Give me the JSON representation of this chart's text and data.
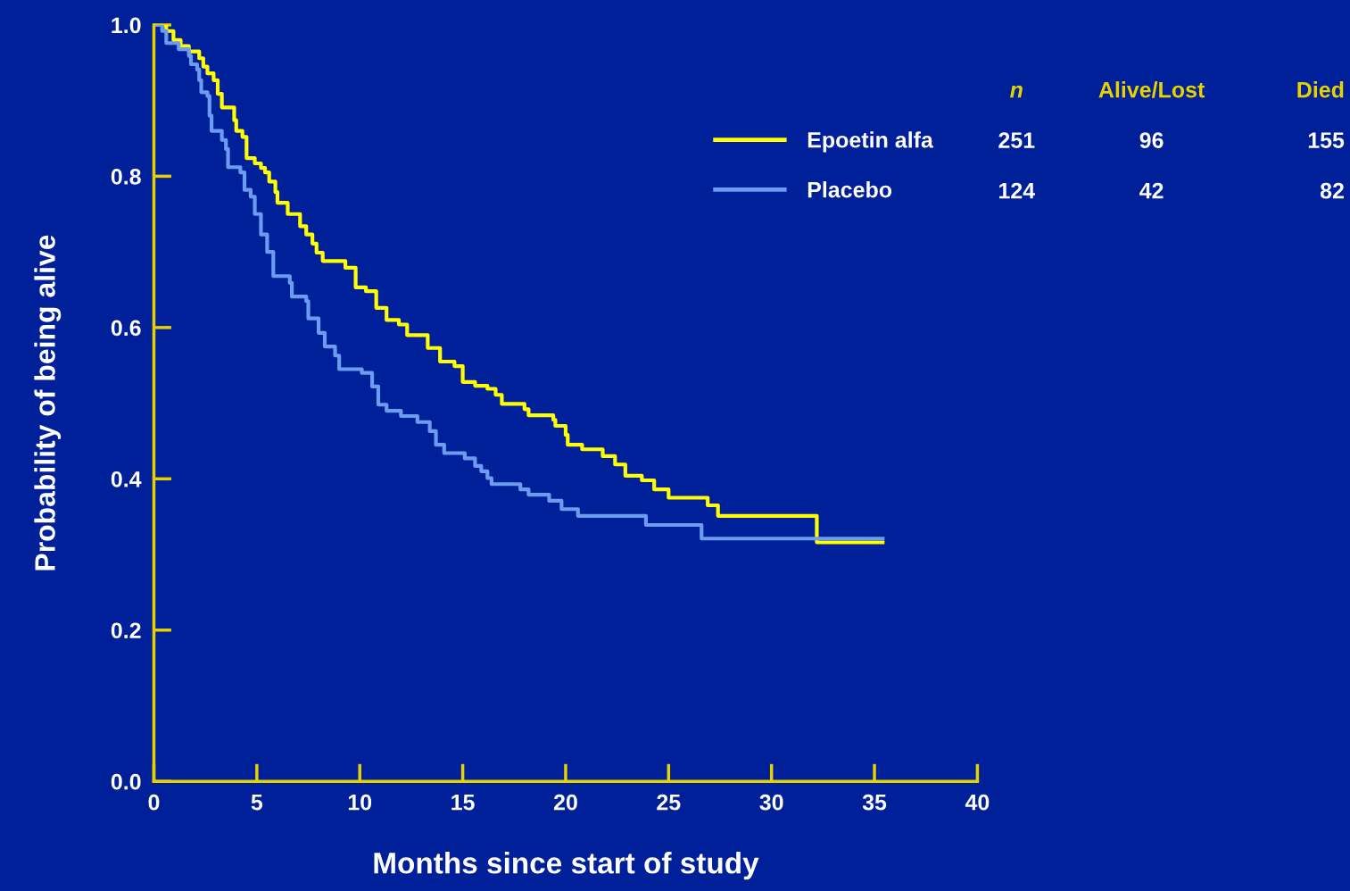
{
  "chart_data": {
    "type": "step",
    "xlabel": "Months since start of study",
    "ylabel": "Probability of being alive",
    "xlim": [
      0,
      40
    ],
    "xticks": [
      0,
      5,
      10,
      15,
      20,
      25,
      30,
      35,
      40
    ],
    "ylim": [
      0,
      1.0
    ],
    "yticks": [
      {
        "value": 0,
        "label": "0.0"
      },
      0.2,
      0.4,
      0.6,
      0.8,
      {
        "value": 1,
        "label": "1.0"
      }
    ],
    "grid": false,
    "legend": "top right",
    "marker": "none",
    "line_style": "solid",
    "series": [
      {
        "name": "Epoetin alfa",
        "color": "#ffff00",
        "x": [
          0,
          0.6,
          0.95,
          1.3,
          1.7,
          2.2,
          2.4,
          2.6,
          2.9,
          3.1,
          3.3,
          3.9,
          4.0,
          4.3,
          4.5,
          4.9,
          5.2,
          5.4,
          5.6,
          5.9,
          6.0,
          6.5,
          7.1,
          7.4,
          7.7,
          7.9,
          8.2,
          9.3,
          9.8,
          10.3,
          10.8,
          11.3,
          11.9,
          12.3,
          13.3,
          13.9,
          14.6,
          15.0,
          15.6,
          16.2,
          16.6,
          16.9,
          18.0,
          18.2,
          19.4,
          19.5,
          20.0,
          20.1,
          20.8,
          21.8,
          22.4,
          22.9,
          23.7,
          24.3,
          25.0,
          26.9,
          27.4,
          32.2,
          35.4
        ],
        "values": [
          1.0,
          0.992,
          0.98,
          0.972,
          0.965,
          0.956,
          0.945,
          0.936,
          0.927,
          0.909,
          0.891,
          0.874,
          0.86,
          0.852,
          0.824,
          0.817,
          0.811,
          0.805,
          0.793,
          0.779,
          0.765,
          0.75,
          0.734,
          0.723,
          0.711,
          0.699,
          0.688,
          0.679,
          0.653,
          0.648,
          0.626,
          0.61,
          0.604,
          0.59,
          0.573,
          0.555,
          0.549,
          0.528,
          0.523,
          0.519,
          0.511,
          0.499,
          0.492,
          0.484,
          0.478,
          0.47,
          0.458,
          0.445,
          0.439,
          0.43,
          0.419,
          0.404,
          0.398,
          0.386,
          0.375,
          0.365,
          0.351,
          0.316,
          0.316
        ]
      },
      {
        "name": "Placebo",
        "color": "#6b9cf0",
        "x": [
          0,
          0.4,
          0.6,
          1.2,
          1.7,
          1.8,
          2.1,
          2.2,
          2.3,
          2.6,
          2.7,
          2.8,
          3.3,
          3.5,
          3.6,
          4.2,
          4.4,
          4.7,
          4.9,
          5.2,
          5.5,
          5.8,
          6.6,
          6.7,
          7.4,
          7.5,
          8.0,
          8.3,
          8.8,
          9.0,
          10.1,
          10.6,
          10.9,
          11.3,
          12.0,
          12.8,
          13.4,
          13.7,
          14.1,
          15.1,
          15.6,
          15.9,
          16.2,
          16.4,
          17.8,
          18.2,
          19.2,
          19.8,
          20.6,
          23.9,
          26.6,
          35.4
        ],
        "values": [
          1.0,
          0.992,
          0.976,
          0.968,
          0.959,
          0.948,
          0.941,
          0.927,
          0.911,
          0.906,
          0.88,
          0.86,
          0.848,
          0.836,
          0.812,
          0.805,
          0.782,
          0.773,
          0.75,
          0.723,
          0.7,
          0.668,
          0.659,
          0.641,
          0.635,
          0.612,
          0.593,
          0.575,
          0.563,
          0.545,
          0.54,
          0.522,
          0.498,
          0.49,
          0.483,
          0.475,
          0.463,
          0.445,
          0.434,
          0.427,
          0.417,
          0.41,
          0.401,
          0.393,
          0.386,
          0.379,
          0.371,
          0.36,
          0.351,
          0.339,
          0.321,
          0.321
        ]
      }
    ],
    "annotations": [
      "n",
      "Alive/Lost",
      "Died",
      "251",
      "96",
      "155",
      "124",
      "42",
      "82"
    ]
  }
}
